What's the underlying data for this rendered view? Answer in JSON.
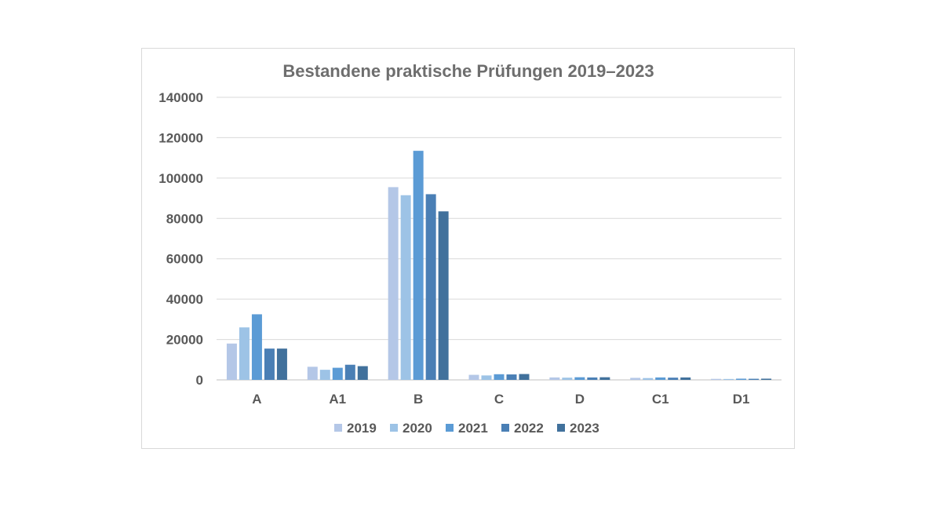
{
  "chart_data": {
    "type": "bar",
    "title": "Bestandene praktische Prüfungen 2019–2023",
    "xlabel": "",
    "ylabel": "",
    "categories": [
      "A",
      "A1",
      "B",
      "C",
      "D",
      "C1",
      "D1"
    ],
    "ylim": [
      0,
      140000
    ],
    "yticks": [
      0,
      20000,
      40000,
      60000,
      80000,
      100000,
      120000,
      140000
    ],
    "grid": true,
    "legend_position": "bottom",
    "series": [
      {
        "name": "2019",
        "color": "#b4c7e7",
        "values": [
          18000,
          6500,
          95500,
          2500,
          1200,
          1000,
          500
        ]
      },
      {
        "name": "2020",
        "color": "#9dc3e6",
        "values": [
          26000,
          5000,
          91500,
          2200,
          1100,
          900,
          450
        ]
      },
      {
        "name": "2021",
        "color": "#5b9bd5",
        "values": [
          32500,
          6000,
          113500,
          2800,
          1300,
          1200,
          600
        ]
      },
      {
        "name": "2022",
        "color": "#4a7fb5",
        "values": [
          15500,
          7500,
          92000,
          2700,
          1200,
          1100,
          550
        ]
      },
      {
        "name": "2023",
        "color": "#41719c",
        "values": [
          15500,
          6800,
          83500,
          2900,
          1300,
          1200,
          600
        ]
      }
    ]
  }
}
